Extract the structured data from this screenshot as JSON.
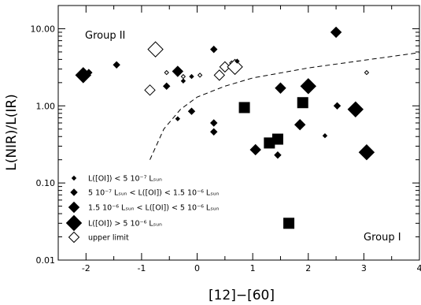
{
  "chart_data": {
    "type": "scatter",
    "xlabel": "[12]−[60]",
    "ylabel": "L(NIR)/L(IR)",
    "xlim": [
      -2.5,
      4.0
    ],
    "ylim": [
      0.01,
      20
    ],
    "yscale": "log",
    "xticks": [
      "-2",
      "-1",
      "0",
      "1",
      "2",
      "3",
      "4"
    ],
    "yticks": [
      "10.00",
      "1.00",
      "0.10",
      "0.01"
    ],
    "annotations": [
      "Group II",
      "Group I"
    ],
    "legend": {
      "position": "bottom-left",
      "entries": [
        {
          "marker": "filled-diamond-xs",
          "label": "L([OI]) < 5 10⁻⁷ Lₛᵤₙ"
        },
        {
          "marker": "filled-diamond-s",
          "label": "5 10⁻⁷ Lₛᵤₙ < L([OI]) < 1.5 10⁻⁶ Lₛᵤₙ"
        },
        {
          "marker": "filled-diamond-m",
          "label": "1.5 10⁻⁶ Lₛᵤₙ < L([OI]) < 5 10⁻⁶ Lₛᵤₙ"
        },
        {
          "marker": "filled-diamond-l",
          "label": "L([OI]) > 5 10⁻⁶ Lₛᵤₙ"
        },
        {
          "marker": "open-diamond",
          "label": "upper limit"
        }
      ]
    },
    "divider_curve": {
      "style": "dashed",
      "points": [
        [
          -0.85,
          0.2
        ],
        [
          -0.6,
          0.5
        ],
        [
          -0.3,
          0.9
        ],
        [
          0.0,
          1.3
        ],
        [
          0.5,
          1.8
        ],
        [
          1.0,
          2.3
        ],
        [
          2.0,
          3.1
        ],
        [
          3.0,
          3.9
        ],
        [
          4.0,
          4.9
        ]
      ]
    },
    "points": [
      {
        "x": -2.05,
        "y": 2.5,
        "marker": "filled-diamond",
        "size": "l"
      },
      {
        "x": -1.95,
        "y": 2.7,
        "marker": "filled-diamond",
        "size": "s"
      },
      {
        "x": -1.45,
        "y": 3.4,
        "marker": "filled-diamond",
        "size": "s"
      },
      {
        "x": -0.75,
        "y": 5.4,
        "marker": "open-diamond",
        "size": "l"
      },
      {
        "x": -0.85,
        "y": 1.6,
        "marker": "open-diamond",
        "size": "m"
      },
      {
        "x": -0.55,
        "y": 1.8,
        "marker": "filled-diamond",
        "size": "s"
      },
      {
        "x": -0.55,
        "y": 2.7,
        "marker": "open-diamond",
        "size": "xs"
      },
      {
        "x": -0.35,
        "y": 2.8,
        "marker": "filled-diamond",
        "size": "m"
      },
      {
        "x": -0.25,
        "y": 2.4,
        "marker": "open-diamond",
        "size": "xs"
      },
      {
        "x": -0.25,
        "y": 2.1,
        "marker": "filled-diamond",
        "size": "xs"
      },
      {
        "x": -0.1,
        "y": 2.4,
        "marker": "filled-diamond",
        "size": "xs"
      },
      {
        "x": 0.05,
        "y": 2.5,
        "marker": "open-diamond",
        "size": "xs"
      },
      {
        "x": -0.1,
        "y": 0.85,
        "marker": "filled-diamond",
        "size": "s"
      },
      {
        "x": -0.35,
        "y": 0.68,
        "marker": "filled-diamond",
        "size": "xs"
      },
      {
        "x": 0.3,
        "y": 5.4,
        "marker": "filled-diamond",
        "size": "s"
      },
      {
        "x": 0.3,
        "y": 0.6,
        "marker": "filled-diamond",
        "size": "s"
      },
      {
        "x": 0.3,
        "y": 0.46,
        "marker": "filled-diamond",
        "size": "s"
      },
      {
        "x": 0.4,
        "y": 2.5,
        "marker": "open-diamond",
        "size": "m"
      },
      {
        "x": 0.5,
        "y": 3.2,
        "marker": "open-diamond",
        "size": "m"
      },
      {
        "x": 0.62,
        "y": 3.6,
        "marker": "open-diamond",
        "size": "xs"
      },
      {
        "x": 0.68,
        "y": 3.2,
        "marker": "open-diamond",
        "size": "l"
      },
      {
        "x": 0.72,
        "y": 3.8,
        "marker": "filled-diamond",
        "size": "xs"
      },
      {
        "x": 0.85,
        "y": 0.95,
        "marker": "filled-square",
        "size": "l"
      },
      {
        "x": 1.05,
        "y": 0.27,
        "marker": "filled-diamond",
        "size": "m"
      },
      {
        "x": 1.3,
        "y": 0.33,
        "marker": "filled-square",
        "size": "l"
      },
      {
        "x": 1.45,
        "y": 0.37,
        "marker": "filled-square",
        "size": "l"
      },
      {
        "x": 1.45,
        "y": 0.23,
        "marker": "filled-diamond",
        "size": "s"
      },
      {
        "x": 1.5,
        "y": 1.7,
        "marker": "filled-diamond",
        "size": "m"
      },
      {
        "x": 1.65,
        "y": 0.03,
        "marker": "filled-square",
        "size": "l"
      },
      {
        "x": 1.85,
        "y": 0.57,
        "marker": "filled-diamond",
        "size": "m"
      },
      {
        "x": 1.9,
        "y": 1.1,
        "marker": "filled-square",
        "size": "l"
      },
      {
        "x": 2.0,
        "y": 1.8,
        "marker": "filled-diamond",
        "size": "l"
      },
      {
        "x": 2.3,
        "y": 0.41,
        "marker": "filled-diamond",
        "size": "xs"
      },
      {
        "x": 2.5,
        "y": 9.0,
        "marker": "filled-diamond",
        "size": "m"
      },
      {
        "x": 2.52,
        "y": 1.0,
        "marker": "filled-diamond",
        "size": "s"
      },
      {
        "x": 2.85,
        "y": 0.9,
        "marker": "filled-diamond",
        "size": "l"
      },
      {
        "x": 3.05,
        "y": 0.25,
        "marker": "filled-diamond",
        "size": "l"
      },
      {
        "x": 3.05,
        "y": 2.7,
        "marker": "open-diamond",
        "size": "xs"
      }
    ]
  }
}
